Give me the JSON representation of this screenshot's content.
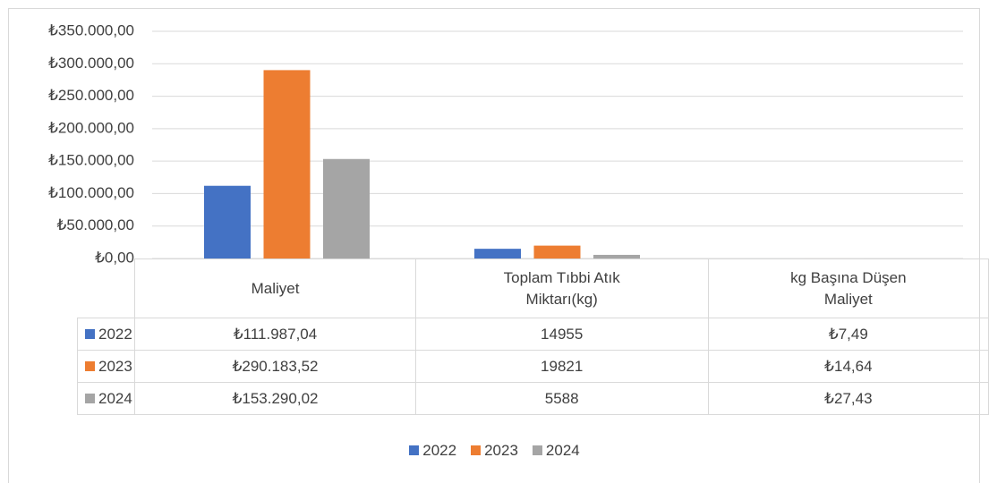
{
  "chart_data": {
    "type": "bar",
    "categories": [
      "Maliyet",
      "Toplam Tıbbi Atık Miktarı(kg)",
      "kg Başına Düşen Maliyet"
    ],
    "series": [
      {
        "name": "2022",
        "color": "#4472c4",
        "values": [
          111987.04,
          14955,
          7.49
        ],
        "value_labels": [
          "₺111.987,04",
          "14955",
          "₺7,49"
        ]
      },
      {
        "name": "2023",
        "color": "#ed7d31",
        "values": [
          290183.52,
          19821,
          14.64
        ],
        "value_labels": [
          "₺290.183,52",
          "19821",
          "₺14,64"
        ]
      },
      {
        "name": "2024",
        "color": "#a5a5a5",
        "values": [
          153290.02,
          5588,
          27.43
        ],
        "value_labels": [
          "₺153.290,02",
          "5588",
          "₺27,43"
        ]
      }
    ],
    "ylim": [
      0,
      350000
    ],
    "yticks": [
      {
        "value": 0,
        "label": "₺0,00"
      },
      {
        "value": 50000,
        "label": "₺50.000,00"
      },
      {
        "value": 100000,
        "label": "₺100.000,00"
      },
      {
        "value": 150000,
        "label": "₺150.000,00"
      },
      {
        "value": 200000,
        "label": "₺200.000,00"
      },
      {
        "value": 250000,
        "label": "₺250.000,00"
      },
      {
        "value": 300000,
        "label": "₺300.000,00"
      },
      {
        "value": 350000,
        "label": "₺350.000,00"
      }
    ],
    "grid": true,
    "legend": "bottom"
  }
}
